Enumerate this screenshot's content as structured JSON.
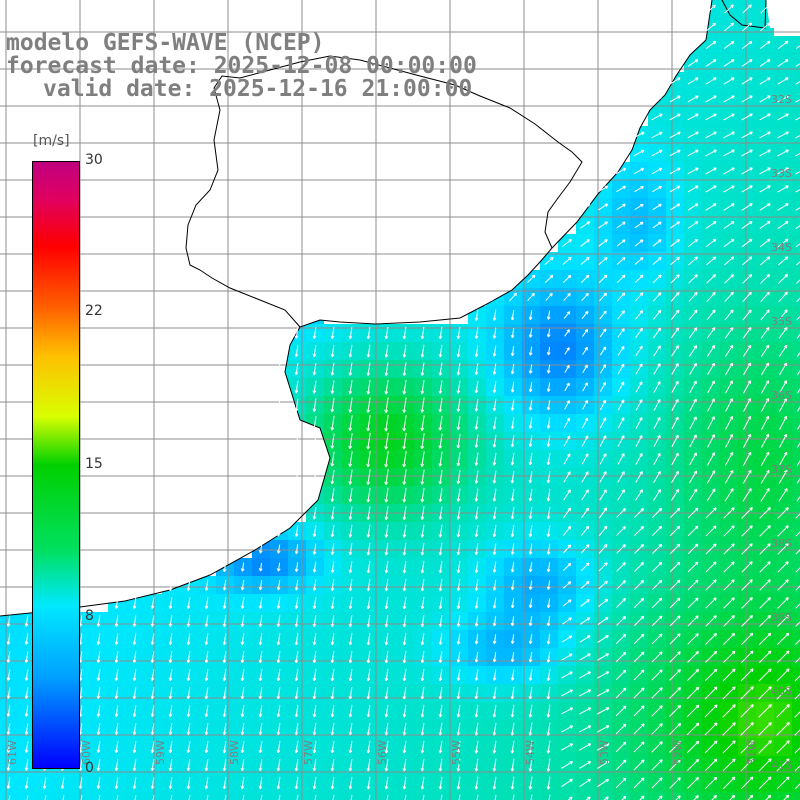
{
  "title": {
    "line1": "modelo GEFS-WAVE (NCEP)",
    "line2": "forecast date: 2025-12-08 00:00:00",
    "line3": "valid date: 2025-12-16 21:00:00"
  },
  "colorbar": {
    "unit": "[m/s]",
    "ticks": [
      "30",
      "22",
      "15",
      "8",
      "0"
    ],
    "range": [
      0,
      30
    ]
  },
  "lat_labels": [
    "32S",
    "33S",
    "34S",
    "35S",
    "36S",
    "37S",
    "38S",
    "39S",
    "40S",
    "41S"
  ],
  "lon_labels": [
    "61W",
    "60W",
    "59W",
    "58W",
    "57W",
    "56W",
    "55W",
    "54W",
    "53W",
    "52W",
    "51W"
  ],
  "colors": {
    "land": "#ffffff",
    "grid": "#8c8c8c",
    "coast": "#000000",
    "arrow": "#ffffff",
    "label": "#7f7f7f"
  }
}
